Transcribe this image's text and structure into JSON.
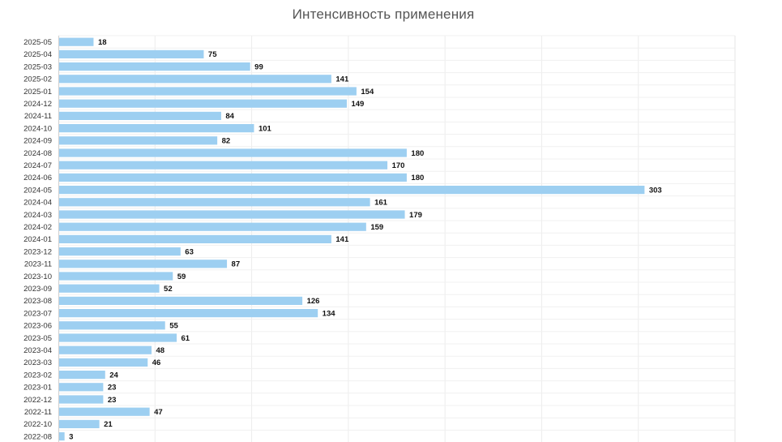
{
  "chart_data": {
    "type": "bar",
    "orientation": "horizontal",
    "title": "Интенсивность применения",
    "xlabel": "",
    "ylabel": "",
    "xlim": [
      0,
      350
    ],
    "grid": true,
    "color": "#9dcff1",
    "categories": [
      "2025-05",
      "2025-04",
      "2025-03",
      "2025-02",
      "2025-01",
      "2024-12",
      "2024-11",
      "2024-10",
      "2024-09",
      "2024-08",
      "2024-07",
      "2024-06",
      "2024-05",
      "2024-04",
      "2024-03",
      "2024-02",
      "2024-01",
      "2023-12",
      "2023-11",
      "2023-10",
      "2023-09",
      "2023-08",
      "2023-07",
      "2023-06",
      "2023-05",
      "2023-04",
      "2023-03",
      "2023-02",
      "2023-01",
      "2022-12",
      "2022-11",
      "2022-10",
      "2022-08"
    ],
    "values": [
      18,
      75,
      99,
      141,
      154,
      149,
      84,
      101,
      82,
      180,
      170,
      180,
      303,
      161,
      179,
      159,
      141,
      63,
      87,
      59,
      52,
      126,
      134,
      55,
      61,
      48,
      46,
      24,
      23,
      23,
      47,
      21,
      3
    ]
  }
}
